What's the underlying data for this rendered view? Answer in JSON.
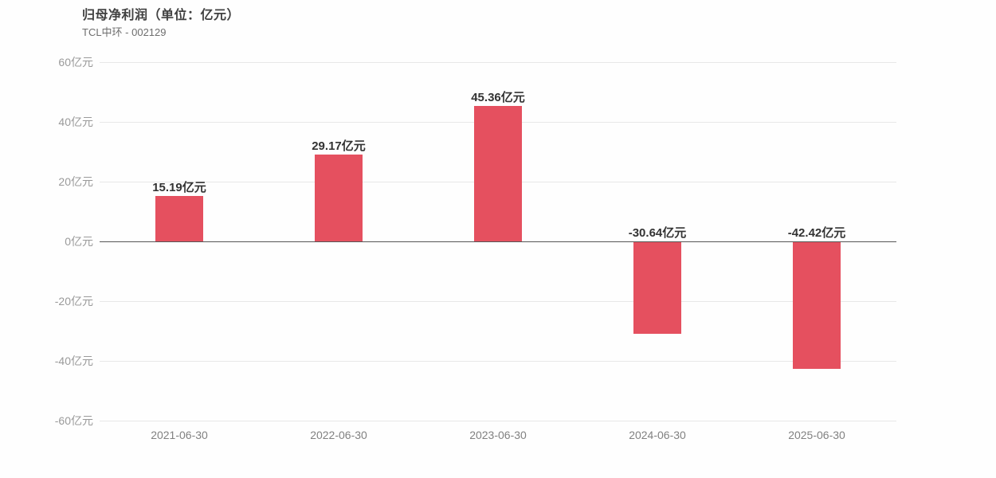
{
  "header": {
    "title": "归母净利润（单位：亿元）",
    "subtitle": "TCL中环 - 002129"
  },
  "chart_data": {
    "type": "bar",
    "title": "归母净利润（单位：亿元）",
    "subtitle": "TCL中环 - 002129",
    "categories": [
      "2021-06-30",
      "2022-06-30",
      "2023-06-30",
      "2024-06-30",
      "2025-06-30"
    ],
    "values": [
      15.19,
      29.17,
      45.36,
      -30.64,
      -42.42
    ],
    "value_labels": [
      "15.19亿元",
      "29.17亿元",
      "45.36亿元",
      "-30.64亿元",
      "-42.42亿元"
    ],
    "unit": "亿元",
    "ylim": [
      -60,
      60
    ],
    "ytick_step": 20,
    "ytick_labels": [
      "60亿元",
      "40亿元",
      "20亿元",
      "0亿元",
      "-20亿元",
      "-40亿元",
      "-60亿元"
    ],
    "grid": true,
    "legend_position": "none",
    "bar_color": "#e5505f",
    "zero_axis_color": "#565656",
    "gridline_color": "#e8e8e8"
  }
}
